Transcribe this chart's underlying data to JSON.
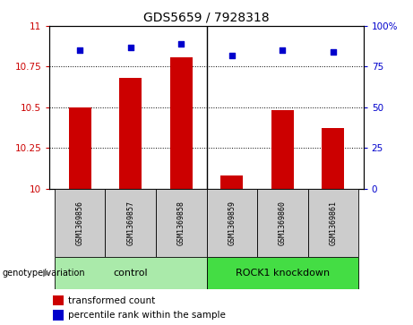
{
  "title": "GDS5659 / 7928318",
  "samples": [
    "GSM1369856",
    "GSM1369857",
    "GSM1369858",
    "GSM1369859",
    "GSM1369860",
    "GSM1369861"
  ],
  "bar_values": [
    10.5,
    10.68,
    10.81,
    10.08,
    10.48,
    10.37
  ],
  "scatter_values": [
    85,
    87,
    89,
    82,
    85,
    84
  ],
  "ylim_left": [
    10,
    11
  ],
  "ylim_right": [
    0,
    100
  ],
  "yticks_left": [
    10,
    10.25,
    10.5,
    10.75,
    11
  ],
  "yticks_right": [
    0,
    25,
    50,
    75,
    100
  ],
  "bar_color": "#cc0000",
  "scatter_color": "#0000cc",
  "bar_width": 0.45,
  "groups": [
    {
      "label": "control",
      "indices": [
        0,
        1,
        2
      ],
      "color": "#aaeaaa"
    },
    {
      "label": "ROCK1 knockdown",
      "indices": [
        3,
        4,
        5
      ],
      "color": "#44dd44"
    }
  ],
  "genotype_label": "genotype/variation",
  "legend_bar_label": "transformed count",
  "legend_scatter_label": "percentile rank within the sample",
  "sample_box_color": "#cccccc",
  "plot_bg_color": "#ffffff"
}
